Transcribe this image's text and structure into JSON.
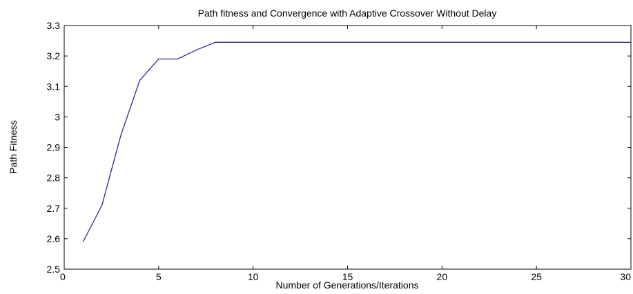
{
  "chart_data": {
    "type": "line",
    "title": "Path fitness and Convergence with Adaptive Crossover Without Delay",
    "xlabel": "Number of Generations/Iterations",
    "ylabel": "Path Fitness",
    "xlim": [
      0,
      30
    ],
    "ylim": [
      2.5,
      3.3
    ],
    "xticks": [
      0,
      5,
      10,
      15,
      20,
      25,
      30
    ],
    "xtick_labels": [
      "0",
      "5",
      "10",
      "15",
      "20",
      "25",
      "30"
    ],
    "yticks": [
      2.5,
      2.6,
      2.7,
      2.8,
      2.9,
      3.0,
      3.1,
      3.2,
      3.3
    ],
    "ytick_labels": [
      "2.5",
      "2.6",
      "2.7",
      "2.8",
      "2.9",
      "3",
      "3.1",
      "3.2",
      "3.3"
    ],
    "grid": false,
    "line_color": "#2a2a8c",
    "series": [
      {
        "x": [
          1,
          2,
          3,
          4,
          5,
          6,
          7,
          8,
          9,
          10,
          11,
          12,
          13,
          14,
          15,
          16,
          17,
          18,
          19,
          20,
          21,
          22,
          23,
          24,
          25,
          26,
          27,
          28,
          29,
          30
        ],
        "values": [
          2.59,
          2.71,
          2.94,
          3.12,
          3.19,
          3.19,
          3.22,
          3.245,
          3.245,
          3.245,
          3.245,
          3.245,
          3.245,
          3.245,
          3.245,
          3.245,
          3.245,
          3.245,
          3.245,
          3.245,
          3.245,
          3.245,
          3.245,
          3.245,
          3.245,
          3.245,
          3.245,
          3.245,
          3.245,
          3.245
        ]
      }
    ]
  }
}
